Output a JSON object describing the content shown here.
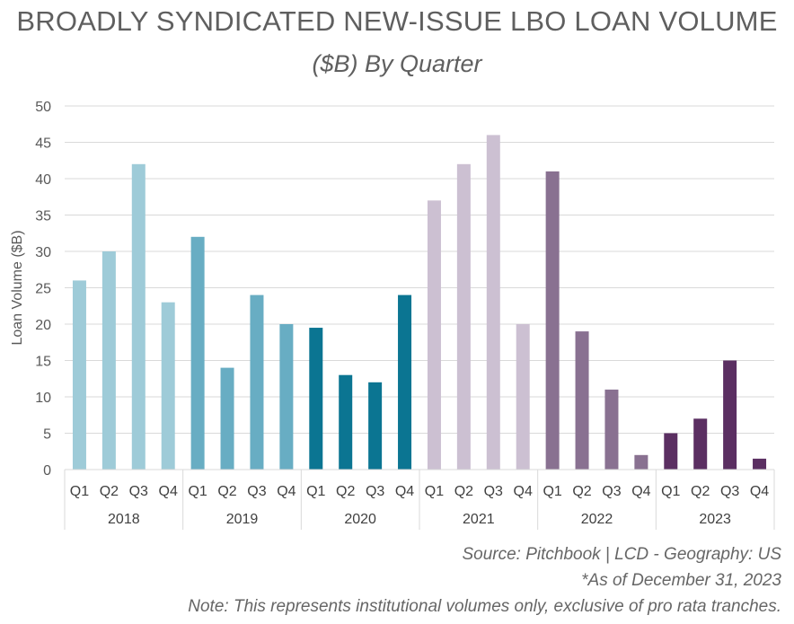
{
  "title": "BROADLY SYNDICATED NEW-ISSUE LBO LOAN VOLUME",
  "subtitle": "($B) By Quarter",
  "notes": {
    "source": "Source: Pitchbook | LCD - Geography: US",
    "as_of": "*As of December 31, 2023",
    "note": "Note: This represents institutional volumes only, exclusive of pro rata tranches."
  },
  "colors": {
    "2018": "#9ecbd8",
    "2019": "#68adc3",
    "2020": "#0b7592",
    "2021": "#ccc0d2",
    "2022": "#897191",
    "2023": "#5b2f62"
  },
  "chart_data": {
    "type": "bar",
    "ylabel": "Loan Volume ($B)",
    "xlabel": "",
    "ylim": [
      0,
      50
    ],
    "yticks": [
      0,
      5,
      10,
      15,
      20,
      25,
      30,
      35,
      40,
      45,
      50
    ],
    "grid": true,
    "groups": [
      {
        "label": "2018",
        "categories": [
          "Q1",
          "Q2",
          "Q3",
          "Q4"
        ],
        "values": [
          26,
          30,
          42,
          23
        ]
      },
      {
        "label": "2019",
        "categories": [
          "Q1",
          "Q2",
          "Q3",
          "Q4"
        ],
        "values": [
          32,
          14,
          24,
          20
        ]
      },
      {
        "label": "2020",
        "categories": [
          "Q1",
          "Q2",
          "Q3",
          "Q4"
        ],
        "values": [
          19.5,
          13,
          12,
          24
        ]
      },
      {
        "label": "2021",
        "categories": [
          "Q1",
          "Q2",
          "Q3",
          "Q4"
        ],
        "values": [
          37,
          42,
          46,
          20
        ]
      },
      {
        "label": "2022",
        "categories": [
          "Q1",
          "Q2",
          "Q3",
          "Q4"
        ],
        "values": [
          41,
          19,
          11,
          2
        ]
      },
      {
        "label": "2023",
        "categories": [
          "Q1",
          "Q2",
          "Q3",
          "Q4"
        ],
        "values": [
          5,
          7,
          15,
          1.5
        ]
      }
    ]
  }
}
